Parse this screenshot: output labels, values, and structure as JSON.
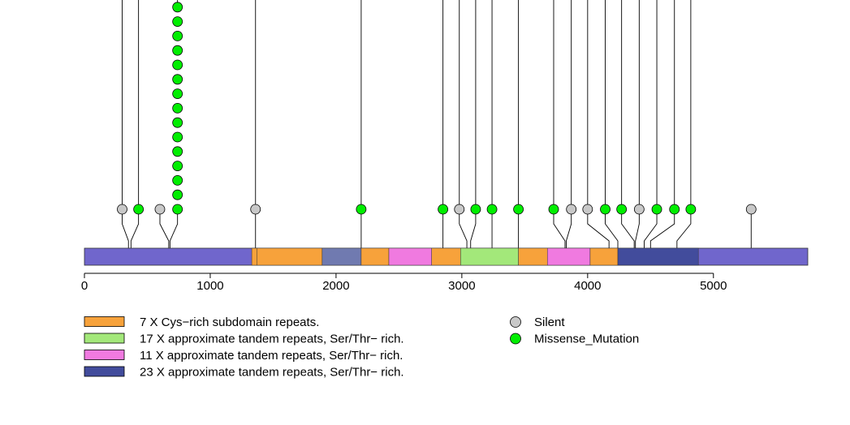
{
  "chart_data": {
    "type": "lollipop",
    "protein_length": 5750,
    "x_axis": {
      "range": [
        0,
        5750
      ],
      "ticks": [
        0,
        1000,
        2000,
        3000,
        4000,
        5000
      ],
      "tick_labels": [
        "0",
        "1000",
        "2000",
        "3000",
        "4000",
        "5000"
      ]
    },
    "base_color": "#7066cc",
    "domains": [
      {
        "start": 1330,
        "end": 1370,
        "color": "#f7a23b",
        "legend": 0
      },
      {
        "start": 1370,
        "end": 1890,
        "color": "#f7a23b",
        "legend": 0
      },
      {
        "start": 1890,
        "end": 2200,
        "color": "#707ab0",
        "legend": -1
      },
      {
        "start": 2200,
        "end": 2420,
        "color": "#f7a23b",
        "legend": 0
      },
      {
        "start": 2420,
        "end": 2760,
        "color": "#f07ae0",
        "legend": 2
      },
      {
        "start": 2760,
        "end": 2990,
        "color": "#f7a23b",
        "legend": 0
      },
      {
        "start": 2990,
        "end": 3450,
        "color": "#a3e87a",
        "legend": 1
      },
      {
        "start": 3450,
        "end": 3680,
        "color": "#f7a23b",
        "legend": 0
      },
      {
        "start": 3680,
        "end": 4020,
        "color": "#f07ae0",
        "legend": 2
      },
      {
        "start": 4020,
        "end": 4240,
        "color": "#f7a23b",
        "legend": 0
      },
      {
        "start": 4240,
        "end": 4880,
        "color": "#424c9c",
        "legend": 3
      }
    ],
    "mutation_types": [
      {
        "name": "Silent",
        "color": "#c8c8c8"
      },
      {
        "name": "Missense_Mutation",
        "color": "#00ee00"
      }
    ],
    "mutations": [
      {
        "pos": 350,
        "label_pos": 300,
        "type": "Silent",
        "count": 1,
        "truncated": true
      },
      {
        "pos": 370,
        "label_pos": 430,
        "type": "Missense_Mutation",
        "count": 1,
        "truncated": true
      },
      {
        "pos": 670,
        "label_pos": 600,
        "type": "Silent",
        "count": 1,
        "truncated": false
      },
      {
        "pos": 680,
        "label_pos": 740,
        "type": "Missense_Mutation",
        "count": 15,
        "truncated": true
      },
      {
        "pos": 1360,
        "label_pos": 1360,
        "type": "Silent",
        "count": 1,
        "truncated": true
      },
      {
        "pos": 2200,
        "label_pos": 2200,
        "type": "Missense_Mutation",
        "count": 1,
        "truncated": true
      },
      {
        "pos": 2850,
        "label_pos": 2850,
        "type": "Missense_Mutation",
        "count": 1,
        "truncated": true
      },
      {
        "pos": 3040,
        "label_pos": 2980,
        "type": "Silent",
        "count": 1,
        "truncated": true
      },
      {
        "pos": 3070,
        "label_pos": 3110,
        "type": "Missense_Mutation",
        "count": 1,
        "truncated": true
      },
      {
        "pos": 3240,
        "label_pos": 3240,
        "type": "Missense_Mutation",
        "count": 1,
        "truncated": true
      },
      {
        "pos": 3450,
        "label_pos": 3450,
        "type": "Missense_Mutation",
        "count": 1,
        "truncated": true
      },
      {
        "pos": 3820,
        "label_pos": 3730,
        "type": "Missense_Mutation",
        "count": 1,
        "truncated": true
      },
      {
        "pos": 3830,
        "label_pos": 3870,
        "type": "Silent",
        "count": 1,
        "truncated": true
      },
      {
        "pos": 4170,
        "label_pos": 4000,
        "type": "Silent",
        "count": 1,
        "truncated": true
      },
      {
        "pos": 4240,
        "label_pos": 4140,
        "type": "Missense_Mutation",
        "count": 1,
        "truncated": true
      },
      {
        "pos": 4370,
        "label_pos": 4270,
        "type": "Missense_Mutation",
        "count": 1,
        "truncated": true
      },
      {
        "pos": 4380,
        "label_pos": 4410,
        "type": "Silent",
        "count": 1,
        "truncated": true
      },
      {
        "pos": 4450,
        "label_pos": 4550,
        "type": "Missense_Mutation",
        "count": 1,
        "truncated": true
      },
      {
        "pos": 4500,
        "label_pos": 4690,
        "type": "Missense_Mutation",
        "count": 1,
        "truncated": true
      },
      {
        "pos": 4710,
        "label_pos": 4820,
        "type": "Missense_Mutation",
        "count": 1,
        "truncated": true
      },
      {
        "pos": 5300,
        "label_pos": 5300,
        "type": "Silent",
        "count": 1,
        "truncated": false
      }
    ],
    "domain_legend": [
      {
        "label": "7 X Cys−rich subdomain repeats.",
        "color": "#f7a23b"
      },
      {
        "label": "17 X approximate tandem repeats, Ser/Thr− rich.",
        "color": "#a3e87a"
      },
      {
        "label": "11 X approximate tandem repeats, Ser/Thr− rich.",
        "color": "#f07ae0"
      },
      {
        "label": "23 X approximate tandem repeats, Ser/Thr− rich.",
        "color": "#424c9c"
      }
    ],
    "mutation_legend": [
      {
        "label": "Silent",
        "color": "#c8c8c8"
      },
      {
        "label": "Missense_Mutation",
        "color": "#00ee00"
      }
    ]
  }
}
